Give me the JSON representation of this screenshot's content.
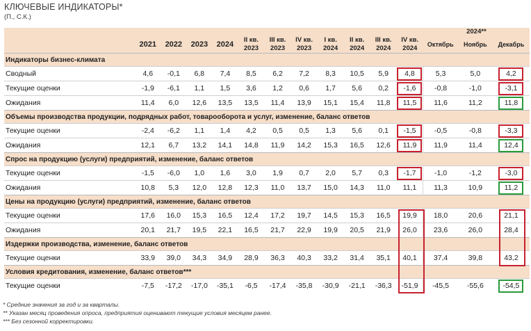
{
  "header": {
    "title": "КЛЮЧЕВЫЕ ИНДИКАТОРЫ*",
    "subtitle": "(П., С.К.)"
  },
  "columns": {
    "year_group": "2024**",
    "cols": [
      "2021",
      "2022",
      "2023",
      "2024",
      "II кв. 2023",
      "III кв. 2023",
      "IV кв. 2023",
      "I кв. 2024",
      "II кв. 2024",
      "III кв. 2024",
      "IV кв. 2024",
      "Октябрь",
      "Ноябрь",
      "Декабрь"
    ]
  },
  "sections": [
    {
      "title": "Индикаторы бизнес-климата",
      "rows": [
        {
          "label": "Сводный",
          "values": [
            "4,6",
            "-0,1",
            "6,8",
            "7,4",
            "8,5",
            "6,2",
            "7,2",
            "8,3",
            "10,5",
            "5,9",
            "4,8",
            "5,3",
            "5,0",
            "4,2"
          ]
        },
        {
          "label": "Текущие оценки",
          "values": [
            "-1,9",
            "-6,1",
            "1,1",
            "1,5",
            "3,6",
            "1,2",
            "0,6",
            "1,7",
            "5,6",
            "0,2",
            "-1,6",
            "-0,8",
            "-1,0",
            "-3,1"
          ]
        },
        {
          "label": "Ожидания",
          "values": [
            "11,4",
            "6,0",
            "12,6",
            "13,5",
            "13,5",
            "11,4",
            "13,9",
            "15,1",
            "15,4",
            "11,8",
            "11,5",
            "11,6",
            "11,2",
            "11,8"
          ]
        }
      ]
    },
    {
      "title": "Объемы производства продукции, подрядных работ, товарооборота и услуг, изменение, баланс ответов",
      "rows": [
        {
          "label": "Текущие оценки",
          "values": [
            "-2,4",
            "-6,2",
            "1,1",
            "1,4",
            "4,2",
            "0,5",
            "0,5",
            "1,3",
            "5,6",
            "0,1",
            "-1,5",
            "-0,5",
            "-0,8",
            "-3,3"
          ]
        },
        {
          "label": "Ожидания",
          "values": [
            "12,1",
            "6,7",
            "13,2",
            "14,1",
            "14,8",
            "11,9",
            "14,2",
            "15,3",
            "16,5",
            "12,6",
            "11,9",
            "11,9",
            "11,4",
            "12,4"
          ]
        }
      ]
    },
    {
      "title": "Спрос на продукцию (услуги) предприятий, изменение, баланс ответов",
      "rows": [
        {
          "label": "Текущие оценки",
          "values": [
            "-1,5",
            "-6,0",
            "1,0",
            "1,6",
            "3,0",
            "1,9",
            "0,7",
            "2,0",
            "5,7",
            "0,3",
            "-1,7",
            "-1,0",
            "-1,2",
            "-3,0"
          ]
        },
        {
          "label": "Ожидания",
          "values": [
            "10,8",
            "5,3",
            "12,0",
            "12,8",
            "12,3",
            "11,0",
            "13,7",
            "15,0",
            "14,3",
            "11,0",
            "11,1",
            "11,3",
            "10,9",
            "11,2"
          ]
        }
      ]
    },
    {
      "title": "Цены на продукцию (услуги) предприятий, изменение, баланс ответов",
      "rows": [
        {
          "label": "Текущие оценки",
          "values": [
            "17,6",
            "16,0",
            "15,3",
            "16,5",
            "12,4",
            "17,2",
            "19,7",
            "14,5",
            "15,3",
            "16,5",
            "19,9",
            "18,0",
            "20,6",
            "21,1"
          ]
        },
        {
          "label": "Ожидания",
          "values": [
            "20,1",
            "21,7",
            "19,5",
            "22,1",
            "16,5",
            "21,7",
            "22,9",
            "19,9",
            "20,5",
            "21,9",
            "26,0",
            "23,6",
            "26,0",
            "28,4"
          ]
        }
      ]
    },
    {
      "title": "Издержки производства, изменение, баланс ответов",
      "rows": [
        {
          "label": "Текущие оценки",
          "values": [
            "33,9",
            "39,0",
            "34,3",
            "34,9",
            "28,9",
            "36,3",
            "40,3",
            "33,2",
            "31,4",
            "35,1",
            "40,1",
            "37,4",
            "39,8",
            "43,2"
          ]
        }
      ]
    },
    {
      "title": "Условия кредитования, изменение, баланс ответов***",
      "rows": [
        {
          "label": "Текущие оценки",
          "values": [
            "-7,5",
            "-17,2",
            "-17,0",
            "-35,1",
            "-6,5",
            "-17,4",
            "-35,8",
            "-30,9",
            "-21,1",
            "-36,3",
            "-51,9",
            "-45,5",
            "-55,6",
            "-54,5"
          ]
        }
      ]
    }
  ],
  "footnotes": [
    "* Средние значения за год и за кварталы.",
    "** Указан месяц проведения опроса, предприятия оценивают текущие условия месяцем ранее.",
    "*** Без сезонной корректировки."
  ],
  "highlights": {
    "red_color": "#c8202e",
    "green_color": "#2a9a3c"
  }
}
